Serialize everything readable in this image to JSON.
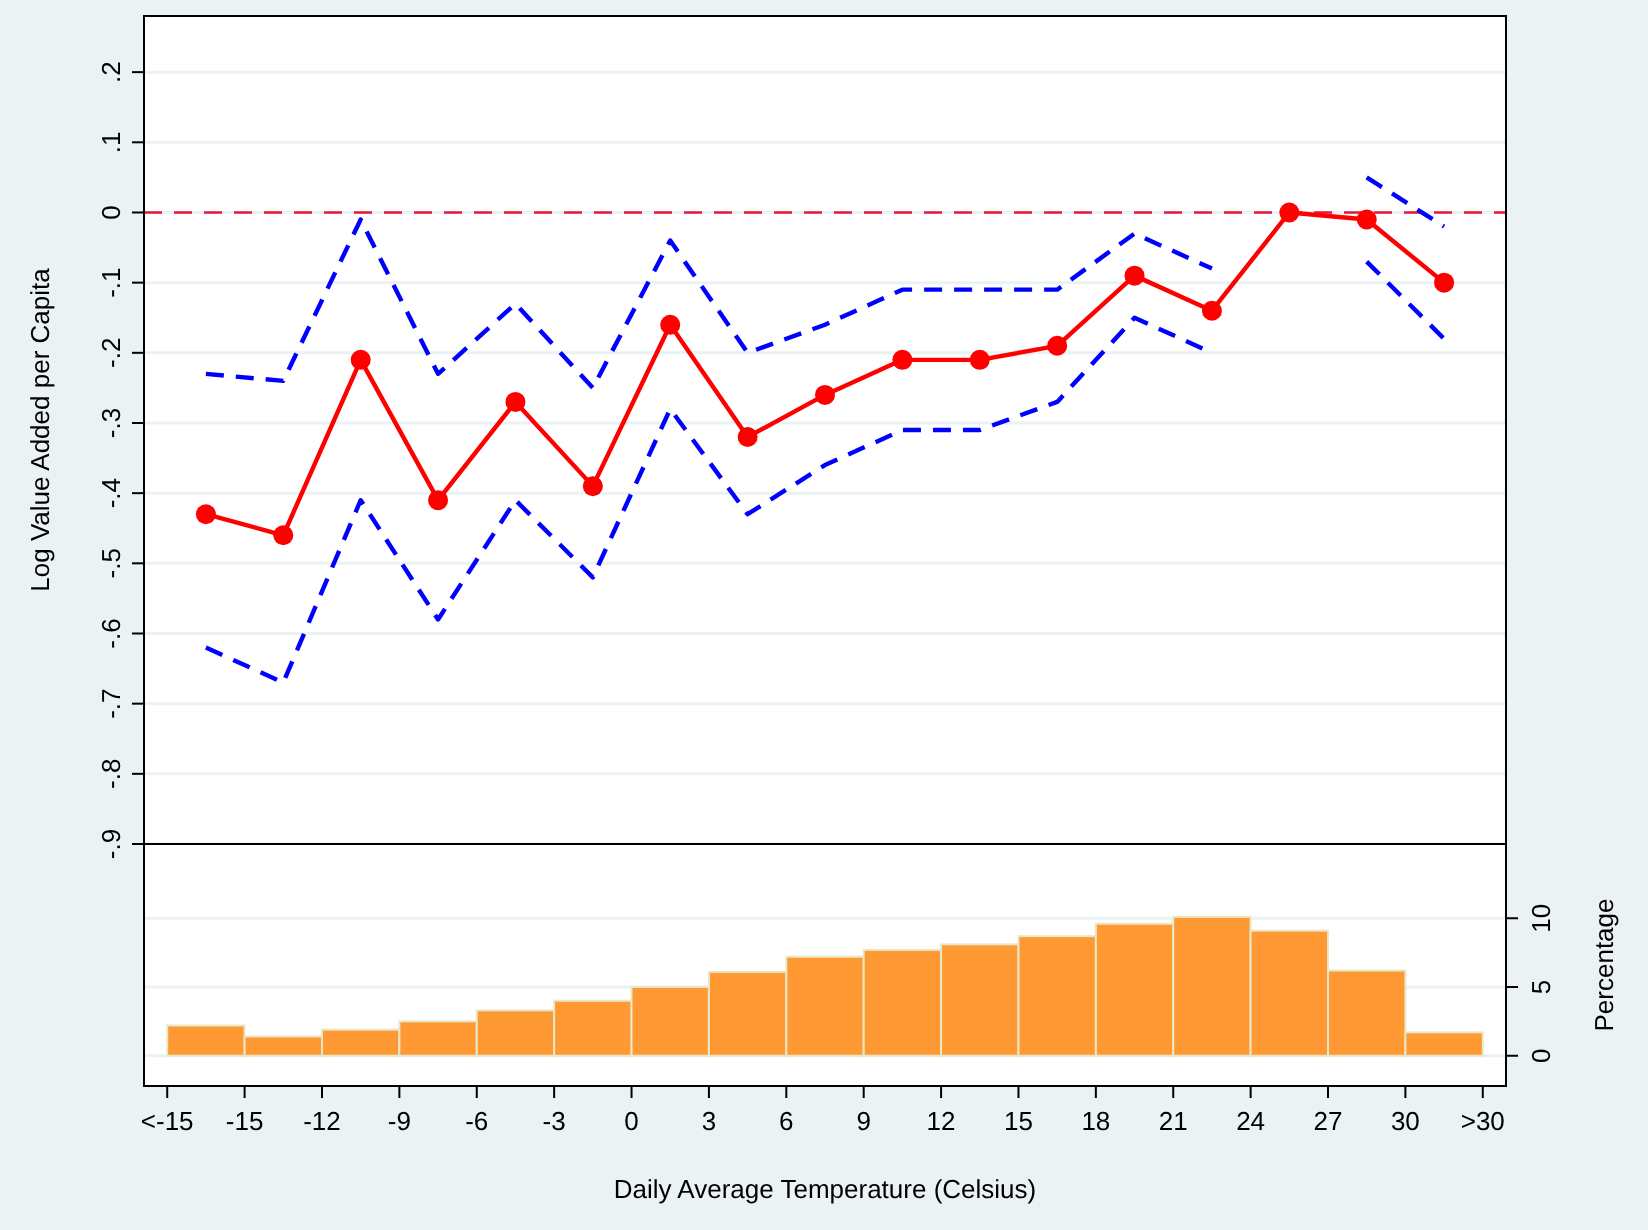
{
  "chart_data": [
    {
      "type": "line",
      "ylabel": "Log Value Added per Capita",
      "xlim": [
        -18.9,
        33.9
      ],
      "ylim": [
        -0.9,
        0.28
      ],
      "x": [
        -16.5,
        -13.5,
        -10.5,
        -7.5,
        -4.5,
        -1.5,
        1.5,
        4.5,
        7.5,
        10.5,
        13.5,
        16.5,
        19.5,
        22.5,
        25.5,
        28.5,
        31.5
      ],
      "yticks": [
        {
          "value": 0.2,
          "label": ".2"
        },
        {
          "value": 0.1,
          "label": ".1"
        },
        0,
        {
          "value": -0.1,
          "label": "-.1"
        },
        {
          "value": -0.2,
          "label": "-.2"
        },
        {
          "value": -0.3,
          "label": "-.3"
        },
        {
          "value": -0.4,
          "label": "-.4"
        },
        {
          "value": -0.5,
          "label": "-.5"
        },
        {
          "value": -0.6,
          "label": "-.6"
        },
        {
          "value": -0.7,
          "label": "-.7"
        },
        {
          "value": -0.8,
          "label": "-.8"
        },
        {
          "value": -0.9,
          "label": "-.9"
        }
      ],
      "tick_labels": "y",
      "grid": "y",
      "ref_lines": [
        {
          "axis": "y",
          "value": 0,
          "color": "#e8173a",
          "line_style": "dashed"
        }
      ],
      "series": [
        {
          "color": "#ff0000",
          "marker": "circle",
          "line_style": "solid",
          "values": [
            -0.43,
            -0.46,
            -0.21,
            -0.41,
            -0.27,
            -0.39,
            -0.16,
            -0.32,
            -0.26,
            -0.21,
            -0.21,
            -0.19,
            -0.09,
            -0.14,
            0.0,
            -0.01,
            -0.1
          ]
        },
        {
          "color": "#0000ff",
          "marker": "none",
          "line_style": "dashed",
          "values": [
            -0.23,
            -0.24,
            -0.01,
            -0.23,
            -0.13,
            -0.25,
            -0.04,
            -0.2,
            -0.16,
            -0.11,
            -0.11,
            -0.11,
            -0.03,
            -0.08,
            null,
            0.05,
            -0.02
          ]
        },
        {
          "color": "#0000ff",
          "marker": "none",
          "line_style": "dashed",
          "values": [
            -0.62,
            -0.67,
            -0.41,
            -0.58,
            -0.41,
            -0.52,
            -0.28,
            -0.43,
            -0.36,
            -0.31,
            -0.31,
            -0.27,
            -0.15,
            -0.2,
            null,
            -0.07,
            -0.18
          ]
        }
      ]
    },
    {
      "type": "histogram",
      "xlabel": "Daily Average Temperature (Celsius)",
      "ylabel": "Percentage",
      "color": "#ff9933",
      "xlim": [
        -18.9,
        33.9
      ],
      "ylim": [
        -2.2,
        15.4
      ],
      "yticks": [
        0,
        5,
        10
      ],
      "grid": "y",
      "xticks": [
        {
          "value": -18,
          "label": "<-15"
        },
        -15,
        -12,
        -9,
        -6,
        -3,
        0,
        3,
        6,
        9,
        12,
        15,
        18,
        21,
        24,
        27,
        30,
        {
          "value": 33,
          "label": ">30"
        }
      ],
      "bins": [
        -18,
        -15,
        -12,
        -9,
        -6,
        -3,
        0,
        3,
        6,
        9,
        12,
        15,
        18,
        21,
        24,
        27,
        30,
        33
      ],
      "values": [
        2.2,
        1.4,
        1.9,
        2.5,
        3.3,
        4.0,
        5.0,
        6.1,
        7.2,
        7.7,
        8.1,
        8.7,
        9.6,
        10.1,
        9.1,
        6.2,
        1.7
      ]
    }
  ]
}
